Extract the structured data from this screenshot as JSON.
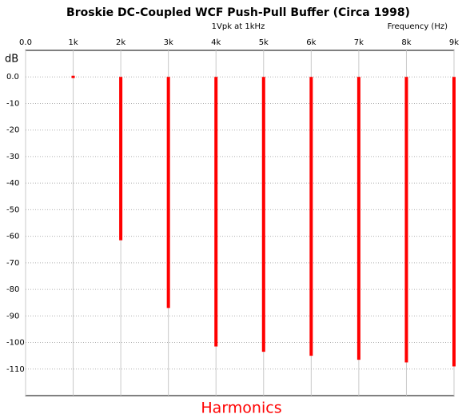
{
  "chart_data": {
    "type": "bar",
    "title": "Broskie DC-Coupled WCF Push-Pull Buffer (Circa 1998)",
    "subtitle": "1Vpk at 1kHz",
    "x_label": "Frequency (Hz)",
    "y_label": "dB",
    "annotation": "Harmonics",
    "x": [
      1000,
      2000,
      3000,
      4000,
      5000,
      6000,
      7000,
      8000,
      9000
    ],
    "values": [
      0,
      -61.5,
      -87,
      -101.5,
      -103.5,
      -105,
      -106.5,
      -107.5,
      -109
    ],
    "color": "#ff0000",
    "xlim": [
      0,
      9000
    ],
    "xticks": [
      {
        "value": 0,
        "label": "0.0"
      },
      {
        "value": 1000,
        "label": "1k"
      },
      {
        "value": 2000,
        "label": "2k"
      },
      {
        "value": 3000,
        "label": "3k"
      },
      {
        "value": 4000,
        "label": "4k"
      },
      {
        "value": 5000,
        "label": "5k"
      },
      {
        "value": 6000,
        "label": "6k"
      },
      {
        "value": 7000,
        "label": "7k"
      },
      {
        "value": 8000,
        "label": "8k"
      },
      {
        "value": 9000,
        "label": "9k"
      }
    ],
    "ylim": [
      -120,
      10
    ],
    "yticks": [
      {
        "value": 0,
        "label": "0.0"
      },
      -10,
      -20,
      -30,
      -40,
      -50,
      -60,
      -70,
      -80,
      -90,
      -100,
      -110
    ],
    "grid": true
  }
}
